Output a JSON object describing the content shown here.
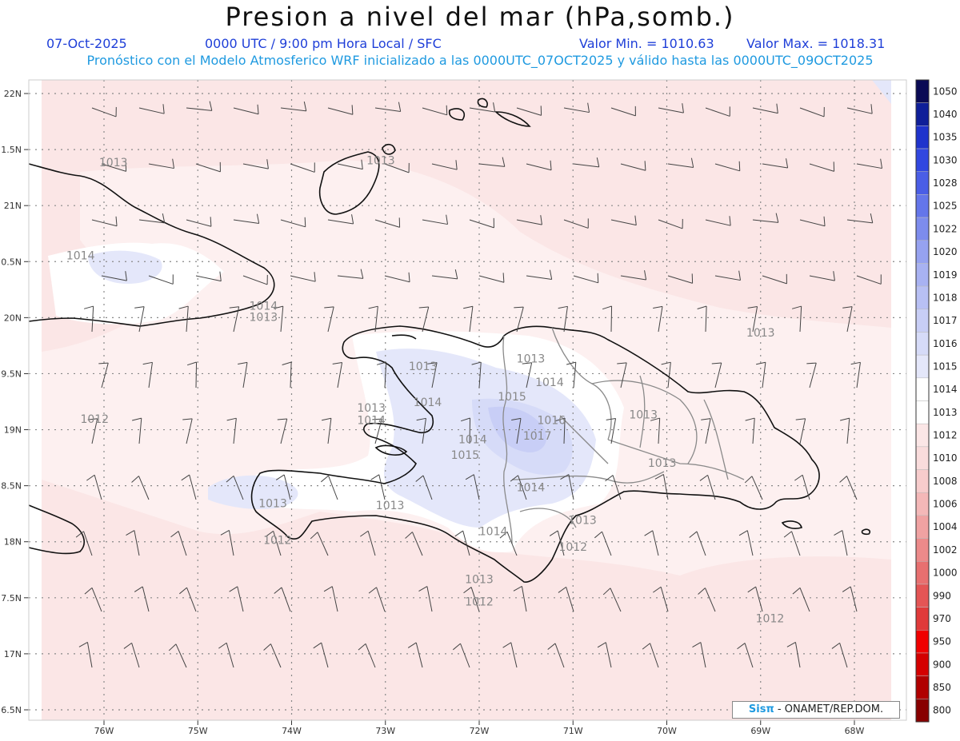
{
  "header": {
    "title": "Presion a nivel del mar (hPa,somb.)",
    "date": "07-Oct-2025",
    "time": "0000 UTC / 9:00 pm Hora Local / SFC",
    "min_label": "Valor Min. = 1010.63",
    "max_label": "Valor Max. = 1018.31",
    "model_line": "Pronóstico con el Modelo Atmosferico WRF inicializado a las 0000UTC_07OCT2025 y válido hasta las  0000UTC_09OCT2025"
  },
  "axes": {
    "lat_labels": [
      "22N",
      "1.5N",
      "21N",
      "0.5N",
      "20N",
      "9.5N",
      "19N",
      "8.5N",
      "18N",
      "7.5N",
      "17N",
      "6.5N"
    ],
    "lon_labels": [
      "76W",
      "75W",
      "74W",
      "73W",
      "72W",
      "71W",
      "70W",
      "69W",
      "68W"
    ]
  },
  "colorbar": {
    "levels": [
      "1050",
      "1040",
      "1035",
      "1030",
      "1028",
      "1025",
      "1022",
      "1020",
      "1019",
      "1018",
      "1017",
      "1016",
      "1015",
      "1014",
      "1013",
      "1012",
      "1010",
      "1008",
      "1006",
      "1004",
      "1002",
      "1000",
      "990",
      "970",
      "950",
      "900",
      "850",
      "800"
    ],
    "colors": [
      "#0a0a55",
      "#0f1f99",
      "#1f33cc",
      "#3147e0",
      "#4a5ee6",
      "#6476ea",
      "#7d8ced",
      "#96a2f0",
      "#a8b2f2",
      "#b8c0f4",
      "#c8cef6",
      "#d6dbf8",
      "#e4e7fa",
      "#ffffff",
      "#ffffff",
      "#fbe6e6",
      "#f9dcdc",
      "#f7cccc",
      "#f4b8b8",
      "#f0a2a2",
      "#ec8a8a",
      "#e87070",
      "#e45555",
      "#e03a3a",
      "#f00000",
      "#d40000",
      "#b00000",
      "#880000"
    ]
  },
  "contour_labels": [
    {
      "text": "1013",
      "lon": -75.9,
      "lat": 21.35
    },
    {
      "text": "1013",
      "lon": -73.05,
      "lat": 21.37
    },
    {
      "text": "1014",
      "lon": -76.25,
      "lat": 20.52
    },
    {
      "text": "1014",
      "lon": -74.3,
      "lat": 20.07
    },
    {
      "text": "1013",
      "lon": -74.3,
      "lat": 19.97
    },
    {
      "text": "1013",
      "lon": -69.0,
      "lat": 19.83
    },
    {
      "text": "1013",
      "lon": -72.6,
      "lat": 19.53
    },
    {
      "text": "1013",
      "lon": -71.45,
      "lat": 19.6
    },
    {
      "text": "1014",
      "lon": -71.25,
      "lat": 19.39
    },
    {
      "text": "1015",
      "lon": -71.65,
      "lat": 19.26
    },
    {
      "text": "1014",
      "lon": -72.55,
      "lat": 19.21
    },
    {
      "text": "1013",
      "lon": -73.15,
      "lat": 19.16
    },
    {
      "text": "1014",
      "lon": -73.15,
      "lat": 19.05
    },
    {
      "text": "1016",
      "lon": -71.23,
      "lat": 19.05
    },
    {
      "text": "1013",
      "lon": -70.25,
      "lat": 19.1
    },
    {
      "text": "1012",
      "lon": -76.1,
      "lat": 19.06
    },
    {
      "text": "1017",
      "lon": -71.38,
      "lat": 18.91
    },
    {
      "text": "1014",
      "lon": -72.07,
      "lat": 18.88
    },
    {
      "text": "1015",
      "lon": -72.15,
      "lat": 18.74
    },
    {
      "text": "1013",
      "lon": -70.05,
      "lat": 18.67
    },
    {
      "text": "1014",
      "lon": -71.45,
      "lat": 18.45
    },
    {
      "text": "1013",
      "lon": -74.2,
      "lat": 18.31
    },
    {
      "text": "1013",
      "lon": -72.95,
      "lat": 18.29
    },
    {
      "text": "1013",
      "lon": -70.9,
      "lat": 18.16
    },
    {
      "text": "1014",
      "lon": -71.85,
      "lat": 18.06
    },
    {
      "text": "1012",
      "lon": -74.15,
      "lat": 17.98
    },
    {
      "text": "1012",
      "lon": -71.0,
      "lat": 17.92
    },
    {
      "text": "1013",
      "lon": -72.0,
      "lat": 17.63
    },
    {
      "text": "1012",
      "lon": -72.0,
      "lat": 17.43
    },
    {
      "text": "1012",
      "lon": -68.9,
      "lat": 17.28
    }
  ],
  "credit": {
    "brand": "Sisπ",
    "rest": " - ONAMET/REP.DOM."
  }
}
